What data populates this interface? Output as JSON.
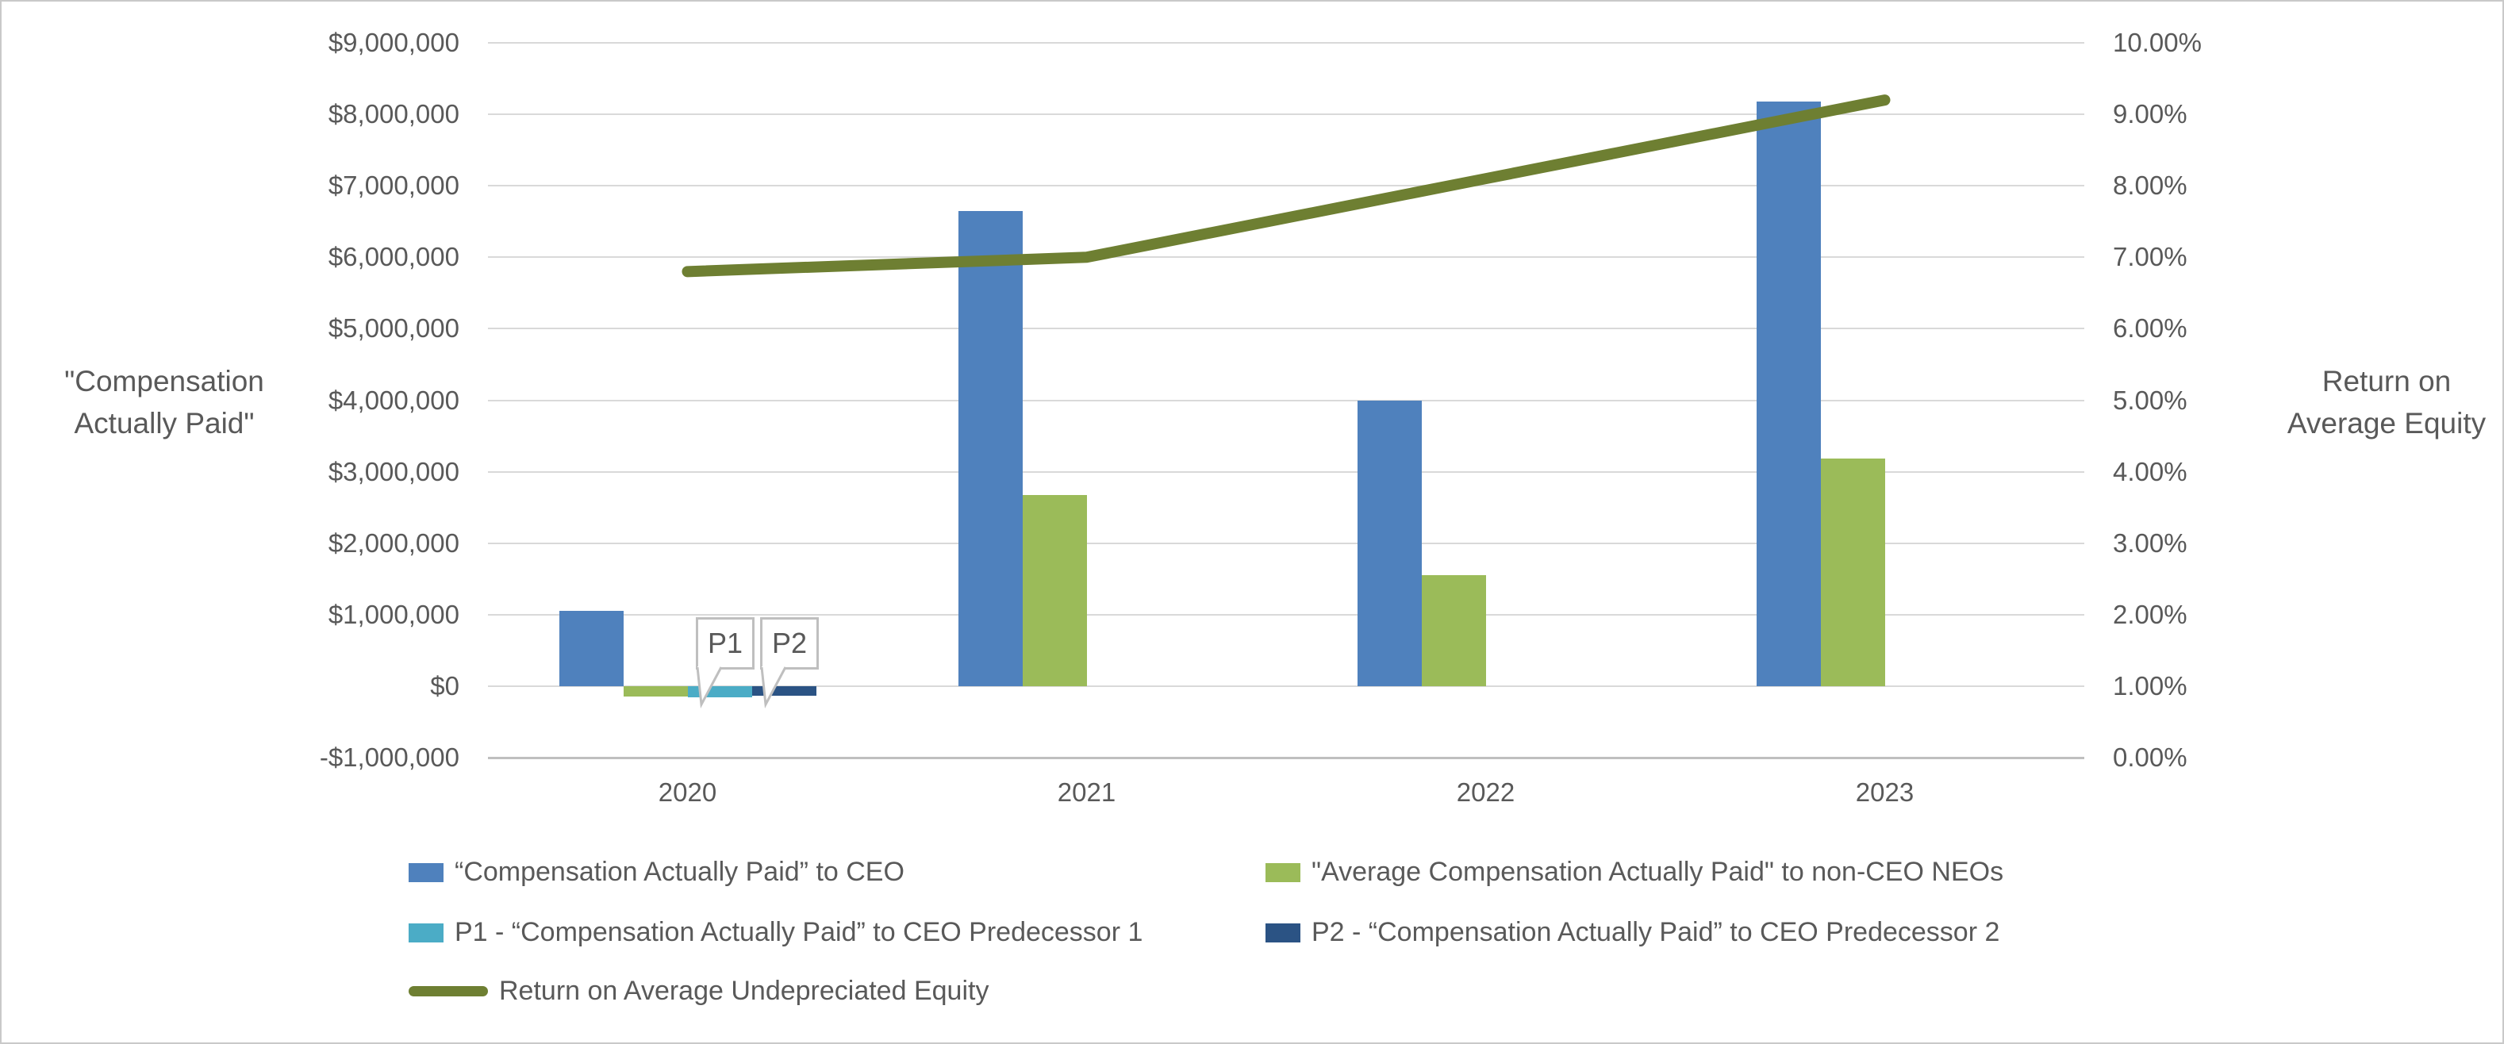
{
  "chart_data": {
    "type": "bar",
    "subtype": "grouped-bars-with-line-overlay",
    "categories": [
      "2020",
      "2021",
      "2022",
      "2023"
    ],
    "bar_series": [
      {
        "name": "“Compensation Actually Paid” to CEO",
        "color": "#4F81BD",
        "values": [
          1050000,
          6650000,
          4000000,
          8180000
        ]
      },
      {
        "name": "\"Average Compensation Actually Paid\" to non-CEO NEOs",
        "color": "#9BBB59",
        "values": [
          -150000,
          2670000,
          1550000,
          3180000
        ]
      },
      {
        "name": "P1 - “Compensation Actually Paid” to CEO Predecessor 1",
        "color": "#4BACC6",
        "values": [
          -160000,
          0,
          0,
          0
        ]
      },
      {
        "name": "P2 - “Compensation Actually Paid” to CEO Predecessor 2",
        "color": "#2B5384",
        "values": [
          -130000,
          0,
          0,
          0
        ]
      }
    ],
    "line_series": {
      "name": "Return on Average Undepreciated Equity",
      "color": "#6E7F32",
      "values_pct": [
        6.8,
        7.0,
        8.1,
        9.2
      ]
    },
    "left_axis": {
      "title_lines": [
        "\"Compensation",
        "Actually Paid\""
      ],
      "min": -1000000,
      "max": 9000000,
      "step": 1000000,
      "tick_labels": [
        "$9,000,000",
        "$8,000,000",
        "$7,000,000",
        "$6,000,000",
        "$5,000,000",
        "$4,000,000",
        "$3,000,000",
        "$2,000,000",
        "$1,000,000",
        "$0",
        "-$1,000,000"
      ]
    },
    "right_axis": {
      "title_lines": [
        "Return on",
        "Average Equity"
      ],
      "min": 0,
      "max": 10,
      "step": 1,
      "tick_labels": [
        "10.00%",
        "9.00%",
        "8.00%",
        "7.00%",
        "6.00%",
        "5.00%",
        "4.00%",
        "3.00%",
        "2.00%",
        "1.00%",
        "0.00%"
      ]
    },
    "callouts": [
      {
        "label": "P1",
        "series_index": 2,
        "category_index": 0
      },
      {
        "label": "P2",
        "series_index": 3,
        "category_index": 0
      }
    ],
    "legend": {
      "rows": [
        {
          "items": [
            {
              "swatch": "bar",
              "color": "#4F81BD",
              "label": "“Compensation Actually Paid” to CEO"
            },
            {
              "swatch": "bar",
              "color": "#9BBB59",
              "label": "\"Average Compensation Actually Paid\" to non-CEO NEOs"
            }
          ]
        },
        {
          "items": [
            {
              "swatch": "bar",
              "color": "#4BACC6",
              "label": "P1 - “Compensation Actually Paid” to CEO Predecessor 1"
            },
            {
              "swatch": "bar",
              "color": "#2B5384",
              "label": "P2 - “Compensation Actually Paid” to CEO Predecessor 2"
            }
          ]
        },
        {
          "items": [
            {
              "swatch": "line",
              "color": "#6E7F32",
              "label": "Return on Average Undepreciated Equity"
            }
          ]
        }
      ]
    },
    "layout_hints": {
      "grid": true,
      "legend_position": "bottom",
      "gridline_color": "#d9d9d9",
      "text_color": "#595959"
    }
  }
}
